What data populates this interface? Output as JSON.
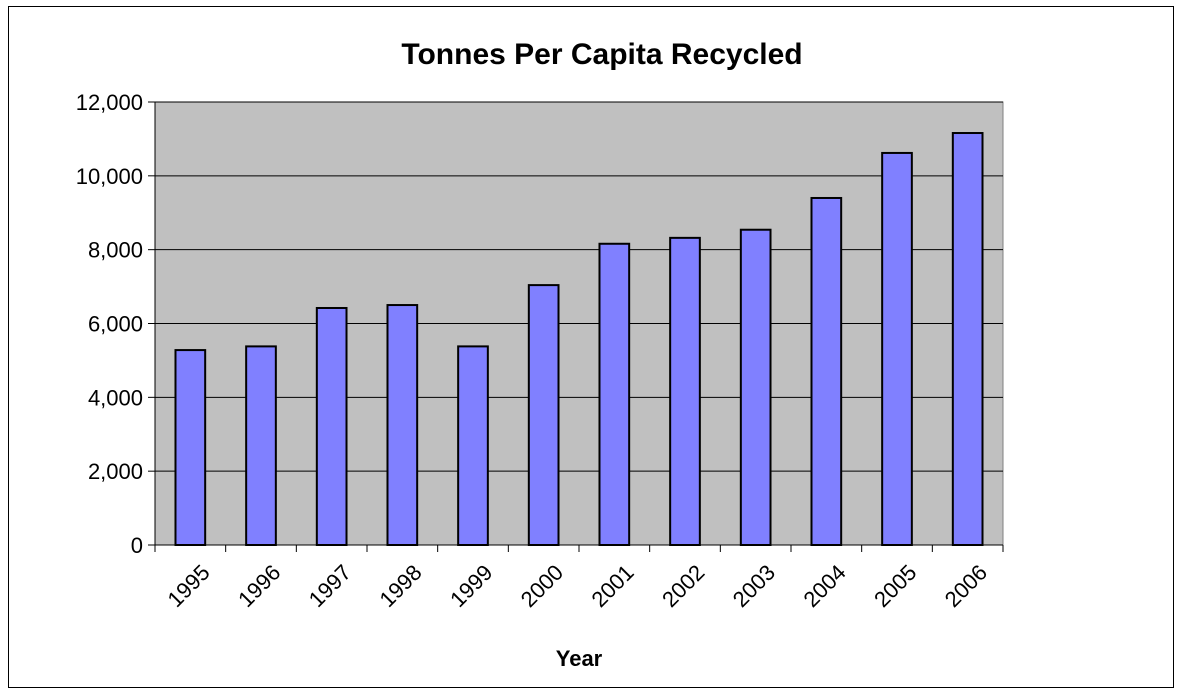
{
  "chart_data": {
    "type": "bar",
    "title": "Tonnes Per Capita Recycled",
    "xlabel": "Year",
    "ylabel": "",
    "categories": [
      "1995",
      "1996",
      "1997",
      "1998",
      "1999",
      "2000",
      "2001",
      "2002",
      "2003",
      "2004",
      "2005",
      "2006"
    ],
    "values": [
      5280,
      5380,
      6420,
      6500,
      5380,
      7040,
      8160,
      8320,
      8540,
      9400,
      10620,
      11160
    ],
    "ylim": [
      0,
      12000
    ],
    "yticks": [
      0,
      2000,
      4000,
      6000,
      8000,
      10000,
      12000
    ],
    "ytick_labels": [
      "0",
      "2,000",
      "4,000",
      "6,000",
      "8,000",
      "10,000",
      "12,000"
    ],
    "grid": true,
    "legend": "none",
    "colors": {
      "bar": "#8080ff",
      "plot_background": "#c0c0c0",
      "gridline": "#000000"
    }
  }
}
